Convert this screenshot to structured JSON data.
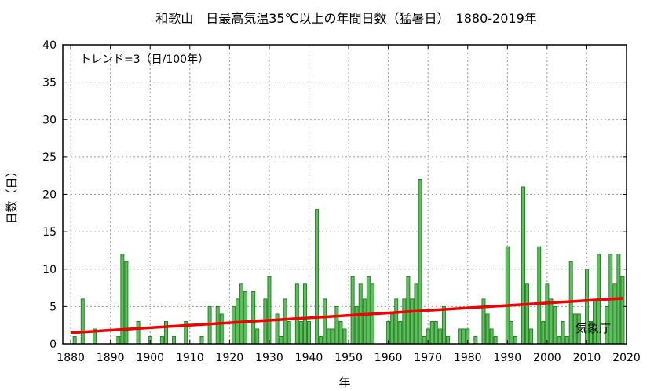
{
  "chart_data": {
    "type": "bar",
    "title": "和歌山　日最高気温35℃以上の年間日数（猛暑日）　1880-2019年",
    "xlabel": "年",
    "ylabel": "日数（日）",
    "annotation": "トレンド=3（日/100年）",
    "watermark": "気象庁",
    "xlim": [
      1878,
      2020
    ],
    "ylim": [
      0,
      40
    ],
    "xticks": [
      1880,
      1890,
      1900,
      1910,
      1920,
      1930,
      1940,
      1950,
      1960,
      1970,
      1980,
      1990,
      2000,
      2010,
      2020
    ],
    "yticks": [
      0,
      5,
      10,
      15,
      20,
      25,
      30,
      35,
      40
    ],
    "grid": true,
    "bar_color": "#5cbf5c",
    "bar_edge_color": "#1f7a1f",
    "trend_color": "#ee0000",
    "years": [
      1880,
      1881,
      1882,
      1883,
      1884,
      1885,
      1886,
      1887,
      1888,
      1889,
      1890,
      1891,
      1892,
      1893,
      1894,
      1895,
      1896,
      1897,
      1898,
      1899,
      1900,
      1901,
      1902,
      1903,
      1904,
      1905,
      1906,
      1907,
      1908,
      1909,
      1910,
      1911,
      1912,
      1913,
      1914,
      1915,
      1916,
      1917,
      1918,
      1919,
      1920,
      1921,
      1922,
      1923,
      1924,
      1925,
      1926,
      1927,
      1928,
      1929,
      1930,
      1931,
      1932,
      1933,
      1934,
      1935,
      1936,
      1937,
      1938,
      1939,
      1940,
      1941,
      1942,
      1943,
      1944,
      1945,
      1946,
      1947,
      1948,
      1949,
      1950,
      1951,
      1952,
      1953,
      1954,
      1955,
      1956,
      1957,
      1958,
      1959,
      1960,
      1961,
      1962,
      1963,
      1964,
      1965,
      1966,
      1967,
      1968,
      1969,
      1970,
      1971,
      1972,
      1973,
      1974,
      1975,
      1976,
      1977,
      1978,
      1979,
      1980,
      1981,
      1982,
      1983,
      1984,
      1985,
      1986,
      1987,
      1988,
      1989,
      1990,
      1991,
      1992,
      1993,
      1994,
      1995,
      1996,
      1997,
      1998,
      1999,
      2000,
      2001,
      2002,
      2003,
      2004,
      2005,
      2006,
      2007,
      2008,
      2009,
      2010,
      2011,
      2012,
      2013,
      2014,
      2015,
      2016,
      2017,
      2018,
      2019
    ],
    "values": [
      0,
      1,
      0,
      6,
      0,
      0,
      2,
      0,
      0,
      0,
      0,
      0,
      1,
      12,
      11,
      0,
      0,
      3,
      0,
      0,
      1,
      0,
      0,
      1,
      3,
      0,
      1,
      0,
      0,
      3,
      0,
      0,
      0,
      1,
      0,
      5,
      0,
      5,
      4,
      0,
      0,
      5,
      6,
      8,
      7,
      0,
      7,
      2,
      0,
      6,
      9,
      0,
      4,
      1,
      6,
      3,
      0,
      8,
      3,
      8,
      3,
      0,
      18,
      1,
      6,
      2,
      2,
      5,
      3,
      2,
      0,
      9,
      5,
      8,
      6,
      9,
      8,
      0,
      0,
      0,
      3,
      4,
      6,
      3,
      6,
      9,
      6,
      8,
      22,
      1,
      2,
      3,
      3,
      2,
      5,
      1,
      0,
      0,
      2,
      2,
      2,
      0,
      1,
      0,
      6,
      4,
      2,
      1,
      0,
      0,
      13,
      3,
      1,
      0,
      21,
      8,
      2,
      0,
      13,
      3,
      8,
      6,
      5,
      1,
      3,
      1,
      11,
      4,
      4,
      0,
      10,
      3,
      6,
      12,
      0,
      5,
      12,
      8,
      12,
      9
    ],
    "trend": {
      "x": [
        1880,
        2019
      ],
      "y": [
        1.5,
        6.1
      ]
    }
  }
}
